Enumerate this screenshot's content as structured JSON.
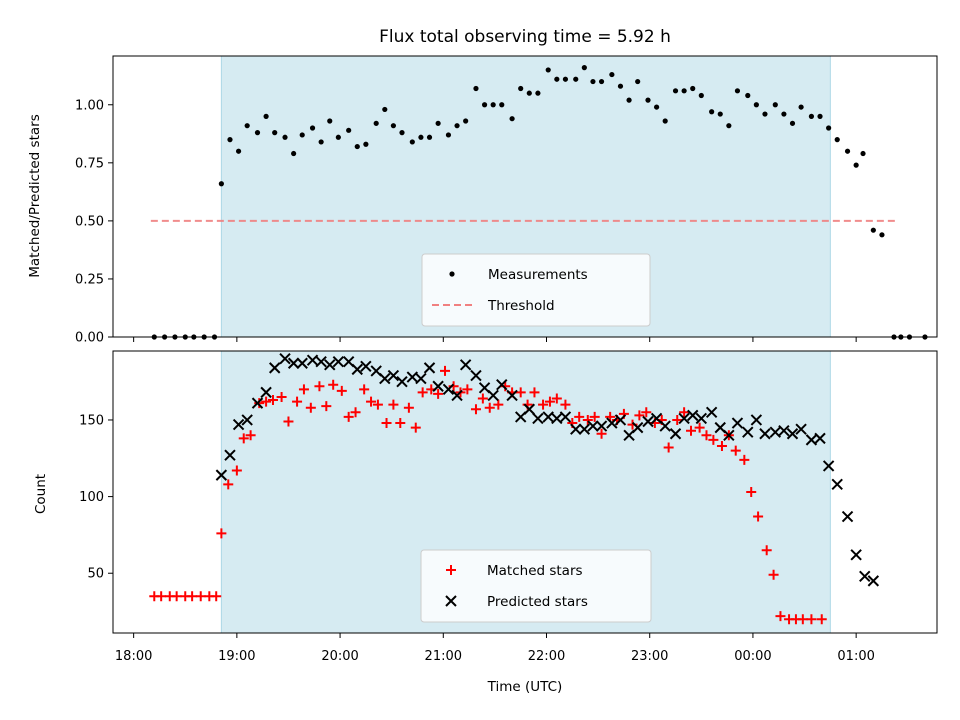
{
  "chart_data": [
    {
      "type": "scatter",
      "title": "Flux total observing time = 5.92 h",
      "xlabel": "",
      "ylabel": "Matched/Predicted stars",
      "ylim": [
        0,
        1.21
      ],
      "yticks": [
        "0.00",
        "0.25",
        "0.50",
        "0.75",
        "1.00"
      ],
      "shaded_region": [
        "18:51",
        "00:45"
      ],
      "shade_color": "#add8e6",
      "threshold": {
        "name": "Threshold",
        "value": 0.5,
        "x_range": [
          "18:10",
          "01:23"
        ],
        "color": "#f08080"
      },
      "legend_position": "lower center",
      "series": [
        {
          "name": "Measurements",
          "color": "#000000",
          "marker": "dot",
          "points": [
            [
              "18:12",
              0.0
            ],
            [
              "18:18",
              0.0
            ],
            [
              "18:24",
              0.0
            ],
            [
              "18:30",
              0.0
            ],
            [
              "18:35",
              0.0
            ],
            [
              "18:41",
              0.0
            ],
            [
              "18:47",
              0.0
            ],
            [
              "18:51",
              0.66
            ],
            [
              "18:56",
              0.85
            ],
            [
              "19:01",
              0.8
            ],
            [
              "19:06",
              0.91
            ],
            [
              "19:12",
              0.88
            ],
            [
              "19:17",
              0.95
            ],
            [
              "19:22",
              0.88
            ],
            [
              "19:28",
              0.86
            ],
            [
              "19:33",
              0.79
            ],
            [
              "19:38",
              0.87
            ],
            [
              "19:44",
              0.9
            ],
            [
              "19:49",
              0.84
            ],
            [
              "19:54",
              0.93
            ],
            [
              "19:59",
              0.86
            ],
            [
              "20:05",
              0.89
            ],
            [
              "20:10",
              0.82
            ],
            [
              "20:15",
              0.83
            ],
            [
              "20:21",
              0.92
            ],
            [
              "20:26",
              0.98
            ],
            [
              "20:31",
              0.91
            ],
            [
              "20:36",
              0.88
            ],
            [
              "20:42",
              0.84
            ],
            [
              "20:47",
              0.86
            ],
            [
              "20:52",
              0.86
            ],
            [
              "20:57",
              0.92
            ],
            [
              "21:03",
              0.87
            ],
            [
              "21:08",
              0.91
            ],
            [
              "21:13",
              0.93
            ],
            [
              "21:19",
              1.07
            ],
            [
              "21:24",
              1.0
            ],
            [
              "21:29",
              1.0
            ],
            [
              "21:34",
              1.0
            ],
            [
              "21:40",
              0.94
            ],
            [
              "21:45",
              1.07
            ],
            [
              "21:50",
              1.05
            ],
            [
              "21:55",
              1.05
            ],
            [
              "22:01",
              1.15
            ],
            [
              "22:06",
              1.11
            ],
            [
              "22:11",
              1.11
            ],
            [
              "22:17",
              1.11
            ],
            [
              "22:22",
              1.16
            ],
            [
              "22:27",
              1.1
            ],
            [
              "22:32",
              1.1
            ],
            [
              "22:38",
              1.13
            ],
            [
              "22:43",
              1.08
            ],
            [
              "22:48",
              1.02
            ],
            [
              "22:53",
              1.1
            ],
            [
              "22:59",
              1.02
            ],
            [
              "23:04",
              0.99
            ],
            [
              "23:09",
              0.93
            ],
            [
              "23:15",
              1.06
            ],
            [
              "23:20",
              1.06
            ],
            [
              "23:25",
              1.07
            ],
            [
              "23:30",
              1.04
            ],
            [
              "23:36",
              0.97
            ],
            [
              "23:41",
              0.96
            ],
            [
              "23:46",
              0.91
            ],
            [
              "23:51",
              1.06
            ],
            [
              "23:57",
              1.04
            ],
            [
              "00:02",
              1.0
            ],
            [
              "00:07",
              0.96
            ],
            [
              "00:13",
              1.0
            ],
            [
              "00:18",
              0.96
            ],
            [
              "00:23",
              0.92
            ],
            [
              "00:28",
              0.99
            ],
            [
              "00:34",
              0.95
            ],
            [
              "00:39",
              0.95
            ],
            [
              "00:44",
              0.9
            ],
            [
              "00:49",
              0.85
            ],
            [
              "00:55",
              0.8
            ],
            [
              "01:00",
              0.74
            ],
            [
              "01:04",
              0.79
            ],
            [
              "01:10",
              0.46
            ],
            [
              "01:15",
              0.44
            ],
            [
              "01:22",
              0.0
            ],
            [
              "01:26",
              0.0
            ],
            [
              "01:31",
              0.0
            ],
            [
              "01:40",
              0.0
            ]
          ]
        }
      ]
    },
    {
      "type": "scatter",
      "title": "",
      "xlabel": "Time (UTC)",
      "ylabel": "Count",
      "ylim": [
        11,
        195
      ],
      "yticks": [
        "50",
        "100",
        "150"
      ],
      "xticks": [
        "18:00",
        "19:00",
        "20:00",
        "21:00",
        "22:00",
        "23:00",
        "00:00",
        "01:00"
      ],
      "shaded_region": [
        "18:51",
        "00:45"
      ],
      "legend_position": "lower center",
      "series": [
        {
          "name": "Matched stars",
          "color": "#ff0000",
          "marker": "plus",
          "points": [
            [
              "18:12",
              35
            ],
            [
              "18:16",
              35
            ],
            [
              "18:21",
              35
            ],
            [
              "18:25",
              35
            ],
            [
              "18:30",
              35
            ],
            [
              "18:34",
              35
            ],
            [
              "18:39",
              35
            ],
            [
              "18:44",
              35
            ],
            [
              "18:48",
              35
            ],
            [
              "18:51",
              76
            ],
            [
              "18:55",
              108
            ],
            [
              "19:00",
              117
            ],
            [
              "19:04",
              138
            ],
            [
              "19:08",
              140
            ],
            [
              "19:13",
              161
            ],
            [
              "19:17",
              162
            ],
            [
              "19:21",
              163
            ],
            [
              "19:26",
              165
            ],
            [
              "19:30",
              149
            ],
            [
              "19:35",
              162
            ],
            [
              "19:39",
              170
            ],
            [
              "19:43",
              158
            ],
            [
              "19:48",
              172
            ],
            [
              "19:52",
              159
            ],
            [
              "19:56",
              173
            ],
            [
              "20:01",
              169
            ],
            [
              "20:05",
              152
            ],
            [
              "20:09",
              155
            ],
            [
              "20:14",
              170
            ],
            [
              "20:18",
              162
            ],
            [
              "20:22",
              160
            ],
            [
              "20:27",
              148
            ],
            [
              "20:31",
              160
            ],
            [
              "20:35",
              148
            ],
            [
              "20:40",
              158
            ],
            [
              "20:44",
              145
            ],
            [
              "20:48",
              168
            ],
            [
              "20:53",
              170
            ],
            [
              "20:57",
              167
            ],
            [
              "21:01",
              182
            ],
            [
              "21:06",
              172
            ],
            [
              "21:10",
              168
            ],
            [
              "21:14",
              170
            ],
            [
              "21:19",
              157
            ],
            [
              "21:23",
              164
            ],
            [
              "21:27",
              158
            ],
            [
              "21:32",
              160
            ],
            [
              "21:36",
              172
            ],
            [
              "21:40",
              168
            ],
            [
              "21:45",
              168
            ],
            [
              "21:49",
              160
            ],
            [
              "21:53",
              168
            ],
            [
              "21:58",
              160
            ],
            [
              "22:02",
              162
            ],
            [
              "22:06",
              164
            ],
            [
              "22:11",
              160
            ],
            [
              "22:15",
              148
            ],
            [
              "22:19",
              152
            ],
            [
              "22:24",
              150
            ],
            [
              "22:28",
              152
            ],
            [
              "22:32",
              141
            ],
            [
              "22:37",
              152
            ],
            [
              "22:41",
              150
            ],
            [
              "22:45",
              154
            ],
            [
              "22:50",
              147
            ],
            [
              "22:54",
              153
            ],
            [
              "22:58",
              155
            ],
            [
              "23:03",
              148
            ],
            [
              "23:07",
              150
            ],
            [
              "23:11",
              132
            ],
            [
              "23:16",
              150
            ],
            [
              "23:20",
              155
            ],
            [
              "23:24",
              143
            ],
            [
              "23:29",
              145
            ],
            [
              "23:33",
              140
            ],
            [
              "23:37",
              137
            ],
            [
              "23:42",
              133
            ],
            [
              "23:46",
              140
            ],
            [
              "23:50",
              130
            ],
            [
              "23:55",
              124
            ],
            [
              "23:59",
              103
            ],
            [
              "00:03",
              87
            ],
            [
              "00:08",
              65
            ],
            [
              "00:12",
              49
            ],
            [
              "00:16",
              22
            ],
            [
              "00:21",
              20
            ],
            [
              "00:25",
              20
            ],
            [
              "00:29",
              20
            ],
            [
              "00:34",
              20
            ],
            [
              "00:40",
              20
            ]
          ]
        },
        {
          "name": "Predicted stars",
          "color": "#000000",
          "marker": "x",
          "points": [
            [
              "18:51",
              114
            ],
            [
              "18:56",
              127
            ],
            [
              "19:01",
              147
            ],
            [
              "19:06",
              150
            ],
            [
              "19:12",
              161
            ],
            [
              "19:17",
              168
            ],
            [
              "19:22",
              184
            ],
            [
              "19:28",
              190
            ],
            [
              "19:33",
              187
            ],
            [
              "19:38",
              187
            ],
            [
              "19:44",
              189
            ],
            [
              "19:49",
              188
            ],
            [
              "19:54",
              186
            ],
            [
              "19:59",
              188
            ],
            [
              "20:05",
              188
            ],
            [
              "20:10",
              183
            ],
            [
              "20:15",
              185
            ],
            [
              "20:21",
              182
            ],
            [
              "20:26",
              177
            ],
            [
              "20:31",
              179
            ],
            [
              "20:36",
              175
            ],
            [
              "20:42",
              178
            ],
            [
              "20:47",
              177
            ],
            [
              "20:52",
              184
            ],
            [
              "20:57",
              172
            ],
            [
              "21:03",
              170
            ],
            [
              "21:08",
              166
            ],
            [
              "21:13",
              186
            ],
            [
              "21:19",
              179
            ],
            [
              "21:24",
              171
            ],
            [
              "21:29",
              166
            ],
            [
              "21:34",
              173
            ],
            [
              "21:40",
              166
            ],
            [
              "21:45",
              152
            ],
            [
              "21:50",
              157
            ],
            [
              "21:55",
              151
            ],
            [
              "22:01",
              152
            ],
            [
              "22:06",
              151
            ],
            [
              "22:11",
              152
            ],
            [
              "22:17",
              144
            ],
            [
              "22:22",
              144
            ],
            [
              "22:27",
              146
            ],
            [
              "22:32",
              146
            ],
            [
              "22:38",
              148
            ],
            [
              "22:43",
              150
            ],
            [
              "22:48",
              140
            ],
            [
              "22:53",
              145
            ],
            [
              "22:59",
              149
            ],
            [
              "23:04",
              151
            ],
            [
              "23:09",
              146
            ],
            [
              "23:15",
              141
            ],
            [
              "23:20",
              151
            ],
            [
              "23:25",
              153
            ],
            [
              "23:30",
              151
            ],
            [
              "23:36",
              155
            ],
            [
              "23:41",
              145
            ],
            [
              "23:46",
              140
            ],
            [
              "23:51",
              148
            ],
            [
              "23:57",
              142
            ],
            [
              "00:02",
              150
            ],
            [
              "00:07",
              141
            ],
            [
              "00:13",
              142
            ],
            [
              "00:18",
              143
            ],
            [
              "00:23",
              141
            ],
            [
              "00:28",
              144
            ],
            [
              "00:34",
              137
            ],
            [
              "00:39",
              138
            ],
            [
              "00:44",
              120
            ],
            [
              "00:49",
              108
            ],
            [
              "00:55",
              87
            ],
            [
              "01:00",
              62
            ],
            [
              "01:05",
              48
            ],
            [
              "01:10",
              45
            ]
          ]
        }
      ]
    }
  ]
}
